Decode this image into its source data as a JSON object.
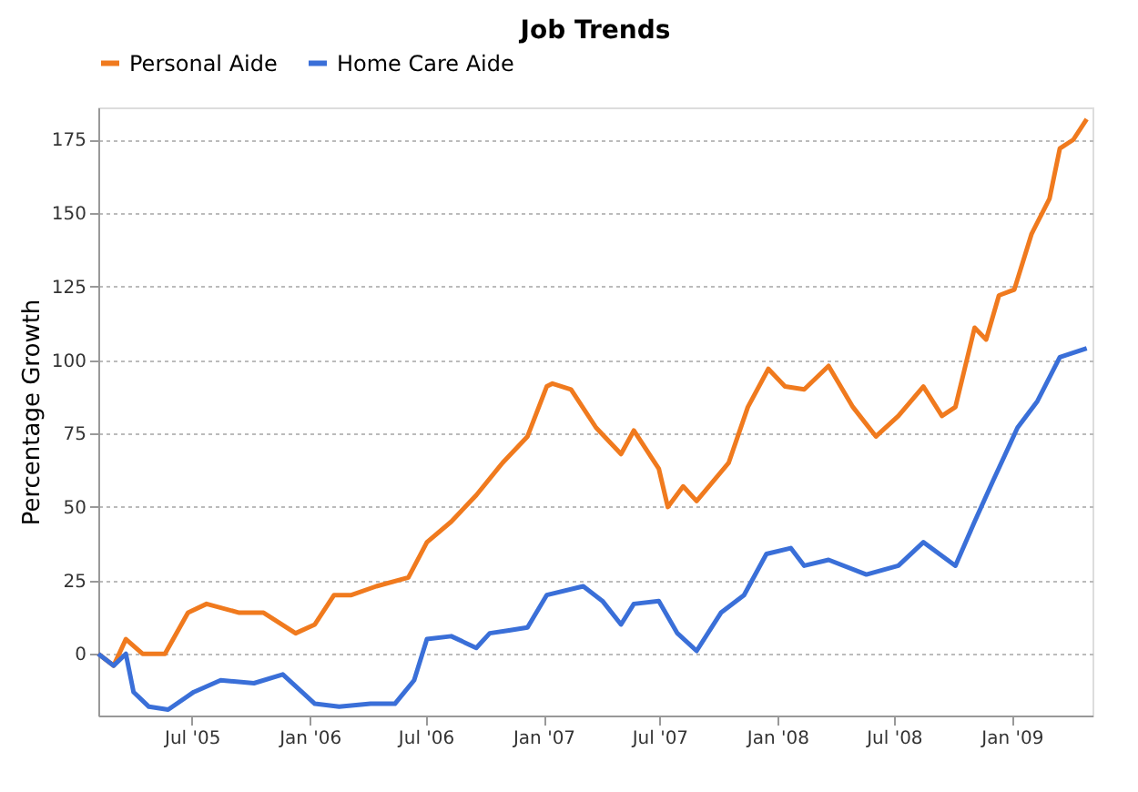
{
  "chart_data": {
    "type": "line",
    "title": "Job Trends",
    "ylabel": "Percentage Growth",
    "xlim": [
      "2005-02-05",
      "2009-05-07"
    ],
    "ylim": [
      -21,
      186
    ],
    "xticks": [
      {
        "value": "2005-07-01",
        "label": "Jul '05"
      },
      {
        "value": "2006-01-01",
        "label": "Jan '06"
      },
      {
        "value": "2006-07-01",
        "label": "Jul '06"
      },
      {
        "value": "2007-01-01",
        "label": "Jan '07"
      },
      {
        "value": "2007-07-01",
        "label": "Jul '07"
      },
      {
        "value": "2008-01-01",
        "label": "Jan '08"
      },
      {
        "value": "2008-07-01",
        "label": "Jul '08"
      },
      {
        "value": "2009-01-01",
        "label": "Jan '09"
      }
    ],
    "yticks": [
      0,
      25,
      50,
      75,
      100,
      125,
      150,
      175
    ],
    "grid": "y",
    "legend": "top",
    "line_style": "solid",
    "series": [
      {
        "name": "Personal Aide",
        "color": "#f07a1e",
        "x": [
          "2005-02-05",
          "2005-03-01",
          "2005-03-20",
          "2005-04-15",
          "2005-05-20",
          "2005-06-25",
          "2005-07-24",
          "2005-09-13",
          "2005-10-21",
          "2005-12-10",
          "2006-01-09",
          "2006-02-08",
          "2006-03-07",
          "2006-04-15",
          "2006-06-04",
          "2006-07-03",
          "2006-08-10",
          "2006-09-18",
          "2006-10-29",
          "2006-12-07",
          "2007-01-06",
          "2007-01-15",
          "2007-02-13",
          "2007-03-24",
          "2007-05-02",
          "2007-05-22",
          "2007-06-30",
          "2007-07-14",
          "2007-08-07",
          "2007-08-28",
          "2007-10-17",
          "2007-11-16",
          "2007-12-18",
          "2008-01-13",
          "2008-02-12",
          "2008-03-21",
          "2008-04-28",
          "2008-06-03",
          "2008-07-08",
          "2008-08-16",
          "2008-09-14",
          "2008-10-05",
          "2008-11-04",
          "2008-11-22",
          "2008-12-12",
          "2009-01-05",
          "2009-02-01",
          "2009-03-01",
          "2009-03-17",
          "2009-04-07",
          "2009-04-28"
        ],
        "values": [
          0,
          -4,
          5,
          0,
          0,
          14,
          17,
          14,
          14,
          7,
          10,
          20,
          20,
          23,
          26,
          38,
          45,
          54,
          65,
          74,
          91,
          92,
          90,
          77,
          68,
          76,
          63,
          50,
          57,
          52,
          65,
          84,
          97,
          91,
          90,
          98,
          84,
          74,
          81,
          91,
          81,
          84,
          111,
          107,
          122,
          124,
          143,
          155,
          172,
          175,
          182
        ]
      },
      {
        "name": "Home Care Aide",
        "color": "#3a6fd8",
        "x": [
          "2005-02-05",
          "2005-03-01",
          "2005-03-20",
          "2005-04-01",
          "2005-04-25",
          "2005-05-25",
          "2005-07-04",
          "2005-08-15",
          "2005-10-06",
          "2005-11-20",
          "2006-01-09",
          "2006-02-16",
          "2006-04-06",
          "2006-05-14",
          "2006-06-13",
          "2006-07-03",
          "2006-08-10",
          "2006-09-18",
          "2006-10-09",
          "2006-11-08",
          "2006-12-07",
          "2007-01-06",
          "2007-03-04",
          "2007-04-03",
          "2007-05-02",
          "2007-05-22",
          "2007-06-30",
          "2007-07-29",
          "2007-08-28",
          "2007-10-05",
          "2007-11-10",
          "2007-12-15",
          "2008-01-22",
          "2008-02-12",
          "2008-03-21",
          "2008-05-19",
          "2008-07-08",
          "2008-08-16",
          "2008-10-05",
          "2008-11-04",
          "2008-12-03",
          "2009-01-10",
          "2009-02-10",
          "2009-03-17",
          "2009-04-28"
        ],
        "values": [
          0,
          -4,
          0,
          -13,
          -18,
          -19,
          -13,
          -9,
          -10,
          -7,
          -17,
          -18,
          -17,
          -17,
          -9,
          5,
          6,
          2,
          7,
          8,
          9,
          20,
          23,
          18,
          10,
          17,
          18,
          7,
          1,
          14,
          20,
          34,
          36,
          30,
          32,
          27,
          30,
          38,
          30,
          45,
          59,
          77,
          86,
          101,
          104
        ]
      }
    ]
  }
}
